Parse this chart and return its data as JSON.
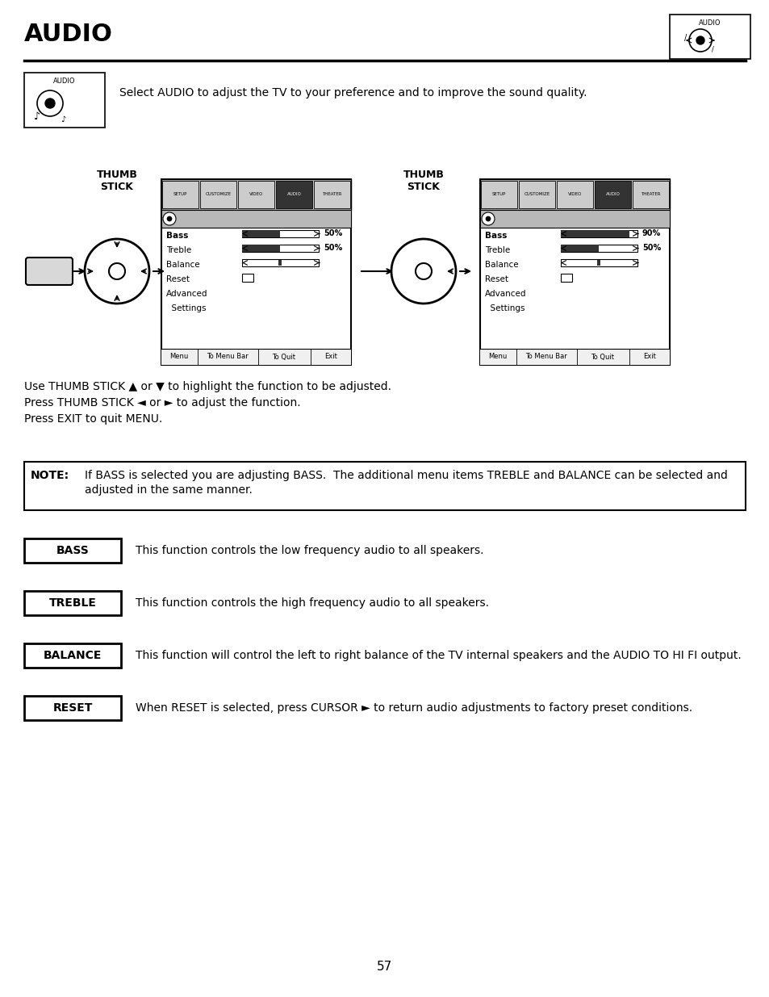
{
  "title": "AUDIO",
  "bg_color": "#ffffff",
  "page_number": "57",
  "intro_text": "Select AUDIO to adjust the TV to your preference and to improve the sound quality.",
  "body_text_line1": "Use THUMB STICK ▲ or ▼ to highlight the function to be adjusted.",
  "body_text_line2": "Press THUMB STICK ◄ or ► to adjust the function.",
  "body_text_line3": "Press EXIT to quit MENU.",
  "note_label": "NOTE:",
  "note_text_line1": "If BASS is selected you are adjusting BASS.  The additional menu items TREBLE and BALANCE can be selected and",
  "note_text_line2": "adjusted in the same manner.",
  "items": [
    {
      "label": "BASS",
      "description": "This function controls the low frequency audio to all speakers."
    },
    {
      "label": "TREBLE",
      "description": "This function controls the high frequency audio to all speakers."
    },
    {
      "label": "BALANCE",
      "description": "This function will control the left to right balance of the TV internal speakers and the AUDIO TO HI FI output."
    },
    {
      "label": "RESET",
      "description": "When RESET is selected, press CURSOR ► to return audio adjustments to factory preset conditions."
    }
  ],
  "menu_tabs": [
    "SETUP",
    "CUSTOMIZE",
    "VIDEO",
    "AUDIO",
    "THEATER"
  ],
  "bottom_bar": [
    "Menu",
    "To Menu Bar",
    "To Quit",
    "Exit"
  ],
  "menu_items": [
    "Bass",
    "Treble",
    "Balance",
    "Reset",
    "Advanced",
    "  Settings"
  ]
}
